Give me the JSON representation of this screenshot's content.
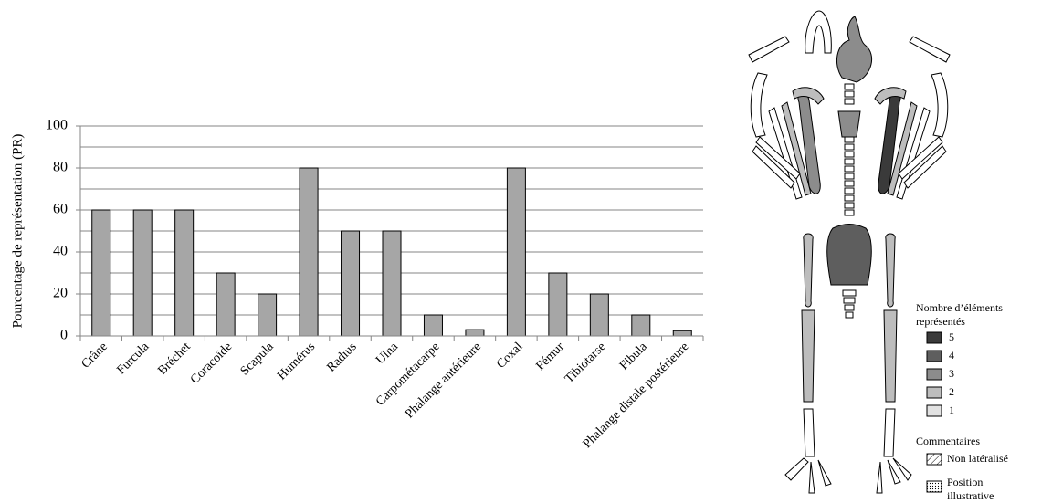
{
  "chart_data": {
    "type": "bar",
    "y_label": "Pourcentage de représentation (PR)",
    "categories": [
      "Crâne",
      "Furcula",
      "Bréchet",
      "Coracoïde",
      "Scapula",
      "Humérus",
      "Radius",
      "Ulna",
      "Carpométacarpe",
      "Phalange antérieure",
      "Coxal",
      "Fémur",
      "Tibiotarse",
      "Fibula",
      "Phalange distale postérieure"
    ],
    "values": [
      60,
      60,
      60,
      30,
      20,
      80,
      50,
      50,
      10,
      3,
      80,
      30,
      20,
      10,
      2.5
    ],
    "color": "#a6a6a6",
    "ylim": [
      0,
      100
    ],
    "yticks": [
      0,
      20,
      40,
      60,
      80,
      100
    ],
    "minor_yticks": [
      10,
      30,
      50,
      70,
      90
    ],
    "grid": true
  },
  "diagram_legend": {
    "title": [
      "Nombre d’éléments",
      "représentés"
    ],
    "items": [
      {
        "label": "5",
        "color": "#3a3a3a"
      },
      {
        "label": "4",
        "color": "#5e5e5e"
      },
      {
        "label": "3",
        "color": "#8c8c8c"
      },
      {
        "label": "2",
        "color": "#bdbdbd"
      },
      {
        "label": "1",
        "color": "#e2e2e2"
      }
    ],
    "comments_title": "Commentaires",
    "comments": [
      {
        "label": [
          "Non latéralisé"
        ],
        "pattern": "hatch"
      },
      {
        "label": [
          "Position",
          "illustrative"
        ],
        "pattern": "dots"
      }
    ]
  }
}
